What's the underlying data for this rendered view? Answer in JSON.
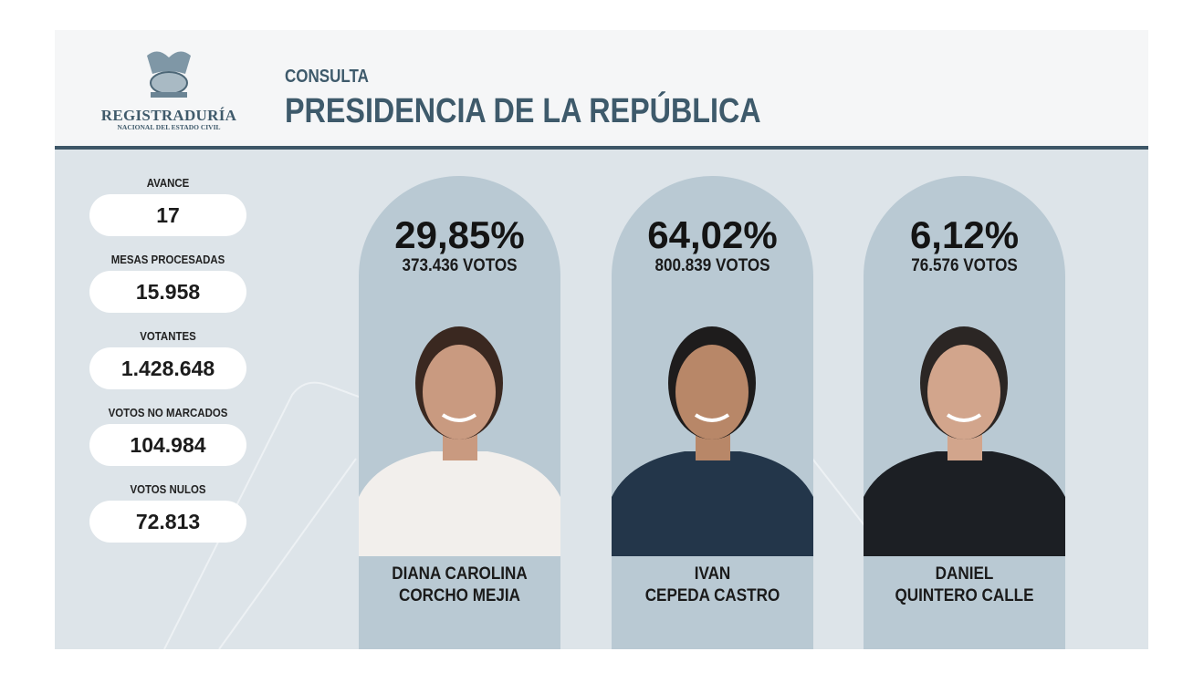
{
  "header": {
    "logo_name": "REGISTRADURÍA",
    "logo_subtitle": "NACIONAL DEL ESTADO CIVIL",
    "subtitle": "CONSULTA",
    "title": "PRESIDENCIA DE LA REPÚBLICA"
  },
  "stats": [
    {
      "label": "AVANCE",
      "value": "17"
    },
    {
      "label": "MESAS PROCESADAS",
      "value": "15.958"
    },
    {
      "label": "VOTANTES",
      "value": "1.428.648"
    },
    {
      "label": "VOTOS NO MARCADOS",
      "value": "104.984"
    },
    {
      "label": "VOTOS NULOS",
      "value": "72.813"
    }
  ],
  "candidates": [
    {
      "percent": "29,85%",
      "votes": "373.436 VOTOS",
      "name_line1": "DIANA CAROLINA",
      "name_line2": "CORCHO MEJIA",
      "jacket": "#f2efec",
      "skin": "#c99a80",
      "hair": "#3a2820"
    },
    {
      "percent": "64,02%",
      "votes": "800.839 VOTOS",
      "name_line1": "IVAN",
      "name_line2": "CEPEDA CASTRO",
      "jacket": "#23364a",
      "skin": "#b88768",
      "hair": "#1e1c1c"
    },
    {
      "percent": "6,12%",
      "votes": "76.576 VOTOS",
      "name_line1": "DANIEL",
      "name_line2": "QUINTERO CALLE",
      "jacket": "#1c1f24",
      "skin": "#d2a58c",
      "hair": "#2b2624"
    }
  ],
  "colors": {
    "accent": "#3e5a6b",
    "panel": "#dde4e9",
    "card": "#b9c9d3"
  }
}
